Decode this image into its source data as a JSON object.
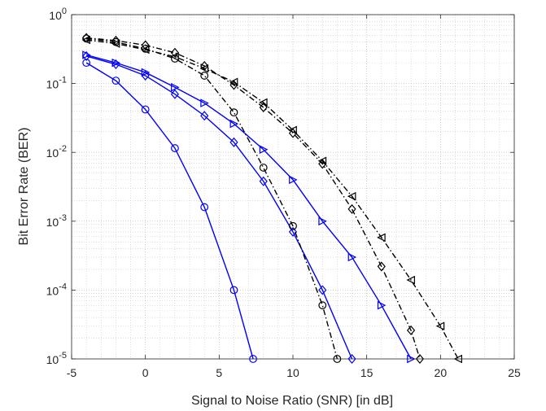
{
  "chart_data": {
    "type": "line",
    "xlabel": "Signal to Noise Ratio (SNR) [in dB]",
    "ylabel": "Bit Error Rate (BER)",
    "xlim": [
      -5,
      25
    ],
    "ylim": [
      1e-05,
      1
    ],
    "yscale": "log",
    "grid": true,
    "grid_minor": true,
    "x_ticks": [
      "-5",
      "0",
      "5",
      "10",
      "15",
      "20",
      "25"
    ],
    "x_tick_values": [
      -5,
      0,
      5,
      10,
      15,
      20,
      25
    ],
    "y_ticks": [
      {
        "base": "10",
        "exp": "0"
      },
      {
        "base": "10",
        "exp": "-1"
      },
      {
        "base": "10",
        "exp": "-2"
      },
      {
        "base": "10",
        "exp": "-3"
      },
      {
        "base": "10",
        "exp": "-4"
      },
      {
        "base": "10",
        "exp": "-5"
      }
    ],
    "y_tick_values": [
      1,
      0.1,
      0.01,
      0.001,
      0.0001,
      1e-05
    ],
    "series": [
      {
        "color": "#0000ff",
        "style": "solid",
        "marker": "circle",
        "x": [
          -4,
          -2,
          0,
          2,
          4,
          6,
          7.3
        ],
        "y": [
          0.2,
          0.11,
          0.042,
          0.0115,
          0.0016,
          0.0001,
          1e-05
        ]
      },
      {
        "color": "#0000ff",
        "style": "solid",
        "marker": "diamond",
        "x": [
          -4,
          -2,
          0,
          2,
          4,
          6,
          8,
          10,
          12,
          14
        ],
        "y": [
          0.25,
          0.19,
          0.13,
          0.07,
          0.034,
          0.014,
          0.0038,
          0.0007,
          0.0001,
          1e-05
        ]
      },
      {
        "color": "#0000ff",
        "style": "solid",
        "marker": "triangle-right",
        "x": [
          -4,
          -2,
          0,
          2,
          4,
          6,
          8,
          10,
          12,
          14,
          16,
          18
        ],
        "y": [
          0.26,
          0.2,
          0.145,
          0.088,
          0.052,
          0.026,
          0.011,
          0.004,
          0.001,
          0.0003,
          6e-05,
          1e-05
        ]
      },
      {
        "color": "#000000",
        "style": "dashdot",
        "marker": "circle",
        "x": [
          -4,
          -2,
          0,
          2,
          4,
          6,
          8,
          10,
          12,
          13
        ],
        "y": [
          0.45,
          0.4,
          0.32,
          0.23,
          0.13,
          0.038,
          0.006,
          0.00085,
          6e-05,
          1e-05
        ]
      },
      {
        "color": "#000000",
        "style": "dashdot",
        "marker": "diamond",
        "x": [
          -4,
          -2,
          0,
          2,
          4,
          6,
          8,
          10,
          12,
          14,
          16,
          18,
          18.6
        ],
        "y": [
          0.46,
          0.42,
          0.36,
          0.28,
          0.18,
          0.095,
          0.045,
          0.019,
          0.0068,
          0.0015,
          0.00022,
          2.6e-05,
          1e-05
        ]
      },
      {
        "color": "#000000",
        "style": "dashdot",
        "marker": "triangle-left",
        "x": [
          -4,
          -2,
          0,
          2,
          4,
          6,
          8,
          10,
          12,
          14,
          16,
          18,
          20,
          21.2
        ],
        "y": [
          0.43,
          0.38,
          0.31,
          0.245,
          0.165,
          0.105,
          0.053,
          0.021,
          0.0075,
          0.0023,
          0.00058,
          0.00014,
          3e-05,
          1e-05
        ]
      }
    ]
  }
}
